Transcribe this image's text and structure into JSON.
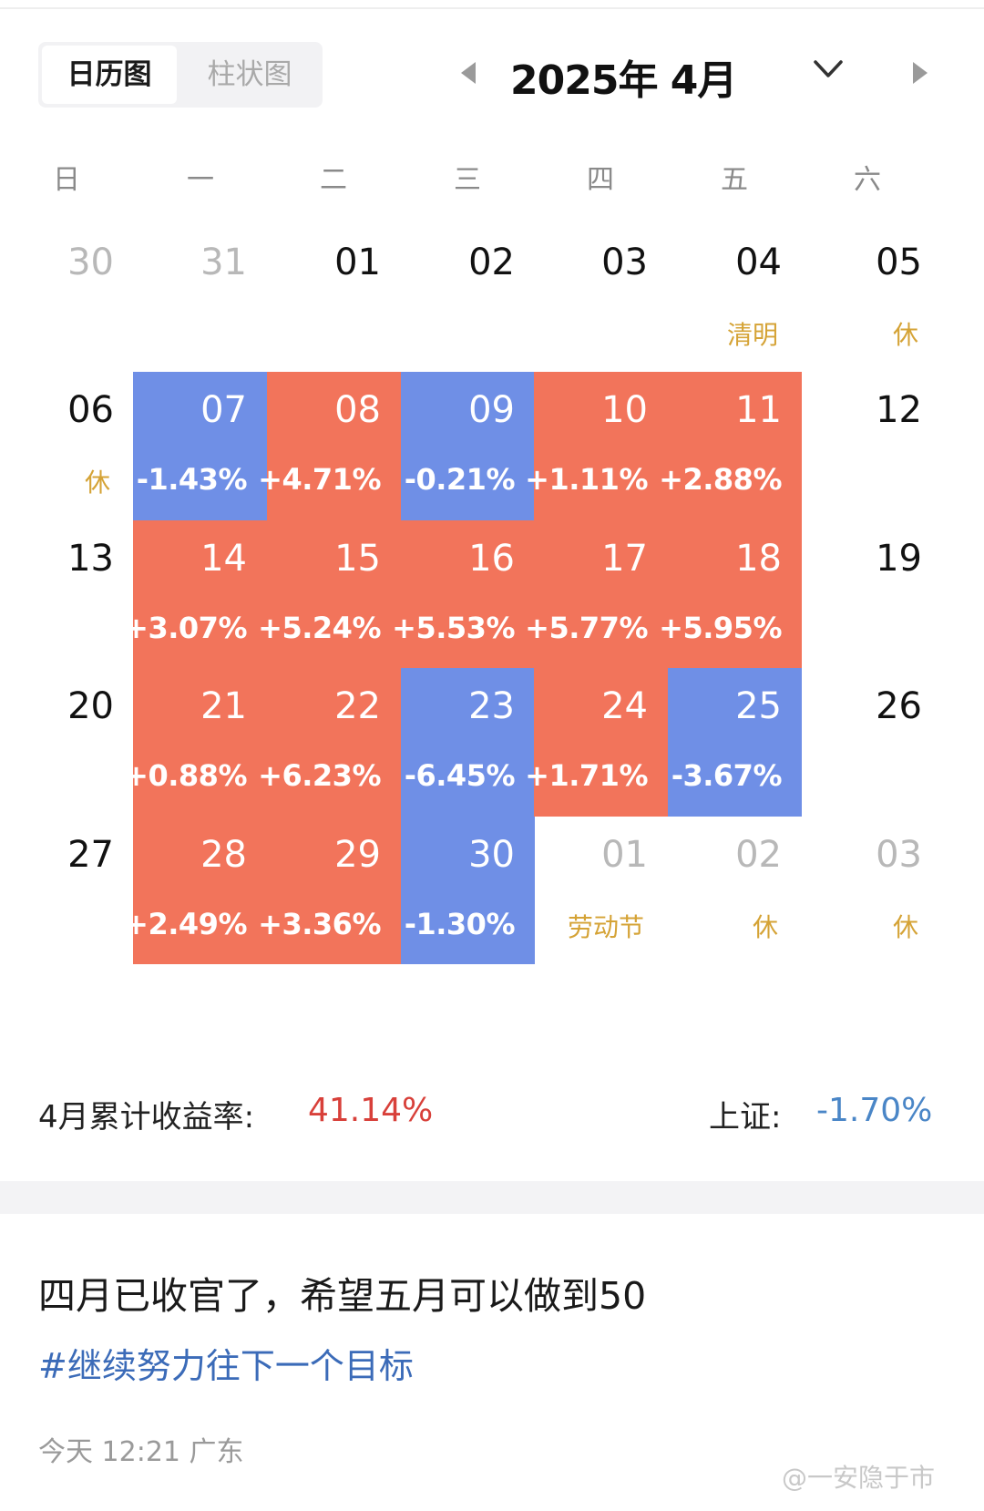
{
  "tabs": {
    "calendar": "日历图",
    "bar": "柱状图"
  },
  "month_title": "2025年 4月",
  "weekdays": [
    "日",
    "一",
    "二",
    "三",
    "四",
    "五",
    "六"
  ],
  "colors": {
    "up": "#f2745b",
    "down": "#6f8fe6",
    "holiday_note": "#d5a336",
    "total": "#d8403a",
    "index": "#4a86c7"
  },
  "weeks": [
    [
      {
        "day": "30",
        "kind": "adj"
      },
      {
        "day": "31",
        "kind": "adj"
      },
      {
        "day": "01",
        "kind": "cur"
      },
      {
        "day": "02",
        "kind": "cur"
      },
      {
        "day": "03",
        "kind": "cur"
      },
      {
        "day": "04",
        "kind": "cur",
        "note": "清明"
      },
      {
        "day": "05",
        "kind": "cur",
        "note": "休"
      }
    ],
    [
      {
        "day": "06",
        "kind": "cur",
        "note": "休"
      },
      {
        "day": "07",
        "kind": "down",
        "pct": "-1.43%"
      },
      {
        "day": "08",
        "kind": "up",
        "pct": "+4.71%"
      },
      {
        "day": "09",
        "kind": "down",
        "pct": "-0.21%"
      },
      {
        "day": "10",
        "kind": "up",
        "pct": "+1.11%"
      },
      {
        "day": "11",
        "kind": "up",
        "pct": "+2.88%"
      },
      {
        "day": "12",
        "kind": "cur"
      }
    ],
    [
      {
        "day": "13",
        "kind": "cur"
      },
      {
        "day": "14",
        "kind": "up",
        "pct": "+3.07%"
      },
      {
        "day": "15",
        "kind": "up",
        "pct": "+5.24%"
      },
      {
        "day": "16",
        "kind": "up",
        "pct": "+5.53%"
      },
      {
        "day": "17",
        "kind": "up",
        "pct": "+5.77%"
      },
      {
        "day": "18",
        "kind": "up",
        "pct": "+5.95%"
      },
      {
        "day": "19",
        "kind": "cur"
      }
    ],
    [
      {
        "day": "20",
        "kind": "cur"
      },
      {
        "day": "21",
        "kind": "up",
        "pct": "+0.88%"
      },
      {
        "day": "22",
        "kind": "up",
        "pct": "+6.23%"
      },
      {
        "day": "23",
        "kind": "down",
        "pct": "-6.45%"
      },
      {
        "day": "24",
        "kind": "up",
        "pct": "+1.71%"
      },
      {
        "day": "25",
        "kind": "down",
        "pct": "-3.67%"
      },
      {
        "day": "26",
        "kind": "cur"
      }
    ],
    [
      {
        "day": "27",
        "kind": "cur"
      },
      {
        "day": "28",
        "kind": "up",
        "pct": "+2.49%"
      },
      {
        "day": "29",
        "kind": "up",
        "pct": "+3.36%"
      },
      {
        "day": "30",
        "kind": "down",
        "pct": "-1.30%"
      },
      {
        "day": "01",
        "kind": "adj",
        "note": "劳动节"
      },
      {
        "day": "02",
        "kind": "adj",
        "note": "休"
      },
      {
        "day": "03",
        "kind": "adj",
        "note": "休"
      }
    ]
  ],
  "summary": {
    "label": "4月累计收益率:",
    "value": "41.14%",
    "index_label": "上证:",
    "index_value": "-1.70%"
  },
  "post": {
    "text": "四月已收官了，希望五月可以做到50",
    "tag": "#继续努力往下一个目标",
    "meta": "今天 12:21 广东"
  },
  "watermark": "@一安隐于市"
}
